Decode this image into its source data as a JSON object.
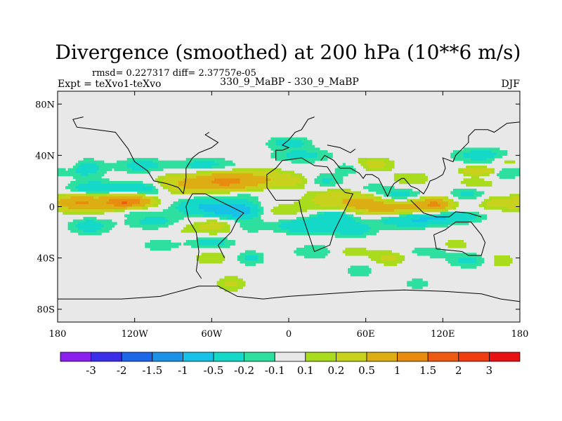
{
  "chart_data": {
    "type": "heatmap",
    "title": "Divergence (smoothed) at 200 hPa (10**6 m/s)",
    "stats": "rmsd= 0.227317 diff= 2.37757e-05",
    "experiment": "Expt = teXvo1-teXvo",
    "case_label": "330_9_MaBP - 330_9_MaBP",
    "season": "DJF",
    "x_axis": {
      "range": [
        -180,
        180
      ],
      "ticks": [
        -180,
        -120,
        -60,
        0,
        60,
        120,
        180
      ],
      "tick_labels": [
        "180",
        "120W",
        "60W",
        "0",
        "60E",
        "120E",
        "180"
      ]
    },
    "y_axis": {
      "range": [
        -90,
        90
      ],
      "ticks": [
        80,
        40,
        0,
        -40,
        -80
      ],
      "tick_labels": [
        "80N",
        "40N",
        "0",
        "40S",
        "80S"
      ]
    },
    "colorbar": {
      "labels": [
        "-3",
        "-2",
        "-1.5",
        "-1",
        "-0.5",
        "-0.2",
        "-0.1",
        "0.1",
        "0.2",
        "0.5",
        "1",
        "1.5",
        "2",
        "3"
      ],
      "colors": [
        "#8a1ff0",
        "#3a2ee8",
        "#1e66e8",
        "#1b92e6",
        "#17c2e8",
        "#15d9c8",
        "#2ee0a0",
        "#e8e8e8",
        "#a8dc1c",
        "#c8d21c",
        "#dcae14",
        "#e88c10",
        "#ee5a12",
        "#f03c10",
        "#e81010"
      ]
    },
    "field": {
      "description": "Anomaly blobs: [lon_center, lat_center, lon_half_width, lat_half_width, value]",
      "blobs": [
        [
          -165,
          3,
          14,
          5,
          0.8
        ],
        [
          -140,
          2,
          22,
          6,
          0.6
        ],
        [
          -125,
          4,
          14,
          4,
          1.2
        ],
        [
          -150,
          14,
          18,
          5,
          -0.4
        ],
        [
          -110,
          14,
          18,
          5,
          -0.4
        ],
        [
          -160,
          30,
          14,
          6,
          -0.35
        ],
        [
          -115,
          32,
          16,
          5,
          -0.3
        ],
        [
          -170,
          33,
          7,
          6,
          0.2
        ],
        [
          -65,
          32,
          22,
          5,
          -0.3
        ],
        [
          -125,
          -3,
          18,
          4,
          -0.3
        ],
        [
          -155,
          -15,
          14,
          6,
          -0.3
        ],
        [
          -100,
          -12,
          22,
          5,
          -0.3
        ],
        [
          -90,
          16,
          14,
          5,
          0.2
        ],
        [
          -70,
          18,
          28,
          7,
          0.5
        ],
        [
          -45,
          20,
          20,
          6,
          0.9
        ],
        [
          -15,
          22,
          16,
          6,
          0.3
        ],
        [
          -40,
          10,
          22,
          5,
          -0.2
        ],
        [
          -65,
          0,
          20,
          6,
          -0.5
        ],
        [
          -40,
          -3,
          16,
          5,
          -0.8
        ],
        [
          -80,
          -15,
          16,
          6,
          0.2
        ],
        [
          -55,
          -15,
          14,
          6,
          0.25
        ],
        [
          -32,
          -15,
          12,
          5,
          -0.2
        ],
        [
          -60,
          -28,
          16,
          4,
          -0.3
        ],
        [
          -30,
          -40,
          10,
          5,
          -0.25
        ],
        [
          -60,
          -40,
          12,
          5,
          0.2
        ],
        [
          -45,
          -60,
          10,
          5,
          0.25
        ],
        [
          -10,
          -3,
          22,
          5,
          0.2
        ],
        [
          10,
          -15,
          18,
          5,
          -0.4
        ],
        [
          35,
          -8,
          14,
          6,
          -0.45
        ],
        [
          50,
          -18,
          16,
          5,
          -0.3
        ],
        [
          25,
          20,
          15,
          5,
          -0.35
        ],
        [
          10,
          20,
          14,
          5,
          0.3
        ],
        [
          65,
          33,
          14,
          5,
          0.3
        ],
        [
          48,
          30,
          10,
          4,
          -0.25
        ],
        [
          10,
          40,
          22,
          5,
          -0.25
        ],
        [
          40,
          5,
          22,
          8,
          0.4
        ],
        [
          60,
          2,
          14,
          5,
          0.5
        ],
        [
          75,
          -2,
          14,
          5,
          0.4
        ],
        [
          65,
          14,
          14,
          4,
          -0.2
        ],
        [
          100,
          0,
          18,
          6,
          0.6
        ],
        [
          115,
          2,
          10,
          4,
          0.8
        ],
        [
          88,
          8,
          16,
          5,
          -0.35
        ],
        [
          95,
          -10,
          22,
          5,
          -0.5
        ],
        [
          125,
          -8,
          22,
          4,
          -0.4
        ],
        [
          140,
          10,
          14,
          6,
          -0.25
        ],
        [
          162,
          3,
          14,
          5,
          0.3
        ],
        [
          145,
          18,
          14,
          4,
          0.25
        ],
        [
          165,
          28,
          14,
          5,
          -0.3
        ],
        [
          150,
          40,
          20,
          5,
          -0.3
        ],
        [
          170,
          35,
          10,
          4,
          0.25
        ],
        [
          150,
          28,
          12,
          3,
          0.6
        ],
        [
          95,
          22,
          14,
          5,
          0.2
        ],
        [
          20,
          -35,
          16,
          5,
          -0.2
        ],
        [
          50,
          -35,
          12,
          4,
          0.2
        ],
        [
          78,
          -40,
          12,
          5,
          0.25
        ],
        [
          110,
          -35,
          16,
          4,
          -0.2
        ],
        [
          140,
          -42,
          14,
          5,
          -0.25
        ],
        [
          165,
          -42,
          10,
          5,
          0.2
        ],
        [
          130,
          -30,
          10,
          4,
          0.2
        ],
        [
          55,
          -50,
          10,
          5,
          -0.2
        ],
        [
          100,
          -60,
          8,
          4,
          -0.2
        ],
        [
          -100,
          -30,
          12,
          4,
          -0.2
        ],
        [
          0,
          50,
          14,
          4,
          -0.3
        ]
      ]
    },
    "map_outline": {
      "description": "Coarse coastline outline polylines in [lon, lat]",
      "lines": [
        [
          [
            -180,
            -72
          ],
          [
            -160,
            -72
          ],
          [
            -130,
            -72
          ],
          [
            -100,
            -70
          ],
          [
            -85,
            -66
          ],
          [
            -70,
            -62
          ],
          [
            -55,
            -62
          ],
          [
            -40,
            -70
          ],
          [
            -20,
            -72
          ],
          [
            0,
            -70
          ],
          [
            30,
            -68
          ],
          [
            60,
            -66
          ],
          [
            90,
            -65
          ],
          [
            120,
            -66
          ],
          [
            150,
            -68
          ],
          [
            165,
            -72
          ],
          [
            180,
            -74
          ]
        ],
        [
          [
            -50,
            -40
          ],
          [
            -55,
            -30
          ],
          [
            -45,
            -20
          ],
          [
            -40,
            -10
          ],
          [
            -35,
            -5
          ],
          [
            -45,
            0
          ],
          [
            -55,
            5
          ],
          [
            -65,
            10
          ],
          [
            -75,
            10
          ],
          [
            -78,
            5
          ],
          [
            -80,
            0
          ],
          [
            -78,
            -10
          ],
          [
            -72,
            -20
          ],
          [
            -70,
            -35
          ],
          [
            -72,
            -50
          ],
          [
            -68,
            -56
          ]
        ],
        [
          [
            -82,
            10
          ],
          [
            -86,
            15
          ],
          [
            -95,
            18
          ],
          [
            -105,
            20
          ],
          [
            -110,
            28
          ],
          [
            -120,
            35
          ],
          [
            -125,
            45
          ],
          [
            -135,
            58
          ],
          [
            -150,
            60
          ],
          [
            -165,
            62
          ],
          [
            -168,
            68
          ],
          [
            -160,
            70
          ]
        ],
        [
          [
            -82,
            10
          ],
          [
            -80,
            22
          ],
          [
            -80,
            30
          ],
          [
            -75,
            38
          ],
          [
            -70,
            42
          ],
          [
            -60,
            46
          ],
          [
            -55,
            50
          ],
          [
            -65,
            56
          ],
          [
            -62,
            58
          ]
        ],
        [
          [
            -17,
            15
          ],
          [
            -17,
            25
          ],
          [
            -10,
            30
          ],
          [
            -5,
            36
          ],
          [
            10,
            38
          ],
          [
            20,
            32
          ],
          [
            30,
            31
          ],
          [
            32,
            28
          ],
          [
            40,
            15
          ],
          [
            44,
            11
          ],
          [
            50,
            10
          ],
          [
            45,
            0
          ],
          [
            40,
            -10
          ],
          [
            35,
            -20
          ],
          [
            32,
            -30
          ],
          [
            20,
            -35
          ],
          [
            15,
            -20
          ],
          [
            10,
            -5
          ],
          [
            8,
            5
          ],
          [
            0,
            5
          ],
          [
            -10,
            5
          ],
          [
            -17,
            15
          ]
        ],
        [
          [
            -10,
            36
          ],
          [
            -10,
            44
          ],
          [
            -5,
            44
          ],
          [
            0,
            46
          ],
          [
            -5,
            48
          ],
          [
            0,
            52
          ],
          [
            5,
            58
          ],
          [
            10,
            60
          ],
          [
            15,
            68
          ],
          [
            20,
            70
          ]
        ],
        [
          [
            25,
            36
          ],
          [
            28,
            40
          ],
          [
            35,
            36
          ],
          [
            40,
            30
          ],
          [
            48,
            30
          ],
          [
            55,
            26
          ],
          [
            58,
            22
          ],
          [
            60,
            25
          ],
          [
            65,
            25
          ],
          [
            70,
            22
          ],
          [
            72,
            18
          ],
          [
            77,
            8
          ],
          [
            80,
            15
          ],
          [
            82,
            18
          ],
          [
            88,
            22
          ],
          [
            90,
            22
          ],
          [
            95,
            16
          ],
          [
            100,
            14
          ],
          [
            105,
            10
          ],
          [
            108,
            15
          ],
          [
            110,
            20
          ],
          [
            115,
            22
          ],
          [
            120,
            25
          ],
          [
            122,
            30
          ],
          [
            120,
            38
          ],
          [
            128,
            35
          ],
          [
            130,
            40
          ],
          [
            135,
            45
          ],
          [
            140,
            50
          ],
          [
            140,
            55
          ],
          [
            145,
            60
          ],
          [
            155,
            60
          ],
          [
            160,
            58
          ],
          [
            163,
            60
          ],
          [
            170,
            65
          ],
          [
            180,
            66
          ]
        ],
        [
          [
            30,
            48
          ],
          [
            40,
            46
          ],
          [
            48,
            42
          ],
          [
            52,
            45
          ]
        ],
        [
          [
            113,
            -22
          ],
          [
            115,
            -33
          ],
          [
            125,
            -34
          ],
          [
            135,
            -35
          ],
          [
            140,
            -38
          ],
          [
            150,
            -38
          ],
          [
            153,
            -28
          ],
          [
            150,
            -22
          ],
          [
            142,
            -12
          ],
          [
            135,
            -12
          ],
          [
            130,
            -12
          ],
          [
            122,
            -18
          ],
          [
            113,
            -22
          ]
        ],
        [
          [
            95,
            5
          ],
          [
            100,
            0
          ],
          [
            105,
            -5
          ],
          [
            115,
            -8
          ],
          [
            125,
            -8
          ],
          [
            130,
            -4
          ],
          [
            140,
            -5
          ],
          [
            150,
            -8
          ]
        ]
      ]
    }
  }
}
